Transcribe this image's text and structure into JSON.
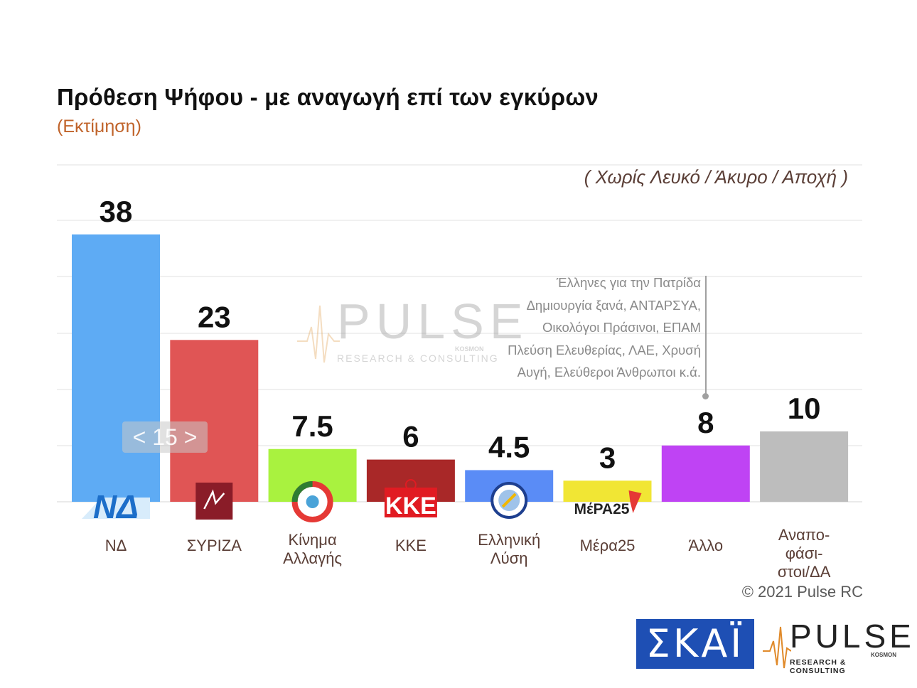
{
  "header": {
    "title": "Πρόθεση Ψήφου - με αναγωγή επί των εγκύρων",
    "subtitle": "(Εκτίμηση)",
    "note": "( Χωρίς Λευκό / Άκυρο / Αποχή )"
  },
  "callout": {
    "lines": [
      "Έλληνες για την Πατρίδα",
      "Δημιουργία ξανά, ΑΝΤΑΡΣΥΑ,",
      "Οικολόγοι Πράσινοι, ΕΠΑΜ",
      "Πλεύση Ελευθερίας, ΛΑΕ, Χρυσή",
      "Αυγή, Ελεύθεροι Άνθρωποι κ.ά."
    ]
  },
  "overlay": {
    "pager": "< 15 >"
  },
  "watermark": {
    "word": "PULSE",
    "sub": "RESEARCH & CONSULTING",
    "kosmon": "KOSMON"
  },
  "footer": {
    "copyright": "© 2021 Pulse RC",
    "skai_logo": "ΣΚΑΪ",
    "pulse_word": "PULSE",
    "pulse_sub": "RESEARCH & CONSULTING",
    "pulse_kosmon": "KOSMON"
  },
  "chart_data": {
    "type": "bar",
    "categories": [
      "ΝΔ",
      "ΣΥΡΙΖΑ",
      "Κίνημα Αλλαγής",
      "ΚΚΕ",
      "Ελληνική Λύση",
      "Μέρα25",
      "Άλλο",
      "Αναπο-φάσι-στοι/ΔΑ"
    ],
    "category_label_lines": [
      [
        "ΝΔ"
      ],
      [
        "ΣΥΡΙΖΑ"
      ],
      [
        "Κίνημα",
        "Αλλαγής"
      ],
      [
        "ΚΚΕ"
      ],
      [
        "Ελληνική",
        "Λύση"
      ],
      [
        "Μέρα25"
      ],
      [
        "Άλλο"
      ],
      [
        "Αναπο-",
        "φάσι-",
        "στοι/ΔΑ"
      ]
    ],
    "values": [
      38,
      23,
      7.5,
      6,
      4.5,
      3,
      8,
      10
    ],
    "value_labels": [
      "38",
      "23",
      "7.5",
      "6",
      "4.5",
      "3",
      "8",
      "10"
    ],
    "colors": [
      "#5eabf4",
      "#e05555",
      "#a9f23f",
      "#a92828",
      "#5a8cf6",
      "#f1e634",
      "#bf43f4",
      "#bdbdbd"
    ],
    "ylim": [
      0,
      40
    ],
    "grid": true,
    "legend": "none",
    "party_logo_icons": [
      "nd-logo-icon",
      "syriza-logo-icon",
      "kinal-logo-icon",
      "kke-logo-icon",
      "elliniki-lysi-logo-icon",
      "mera25-logo-icon",
      "",
      ""
    ],
    "logo_text": {
      "nd": "ΝΔ",
      "kke": "ΚΚΕ",
      "mera25": "ΜέΡΑ25"
    }
  }
}
